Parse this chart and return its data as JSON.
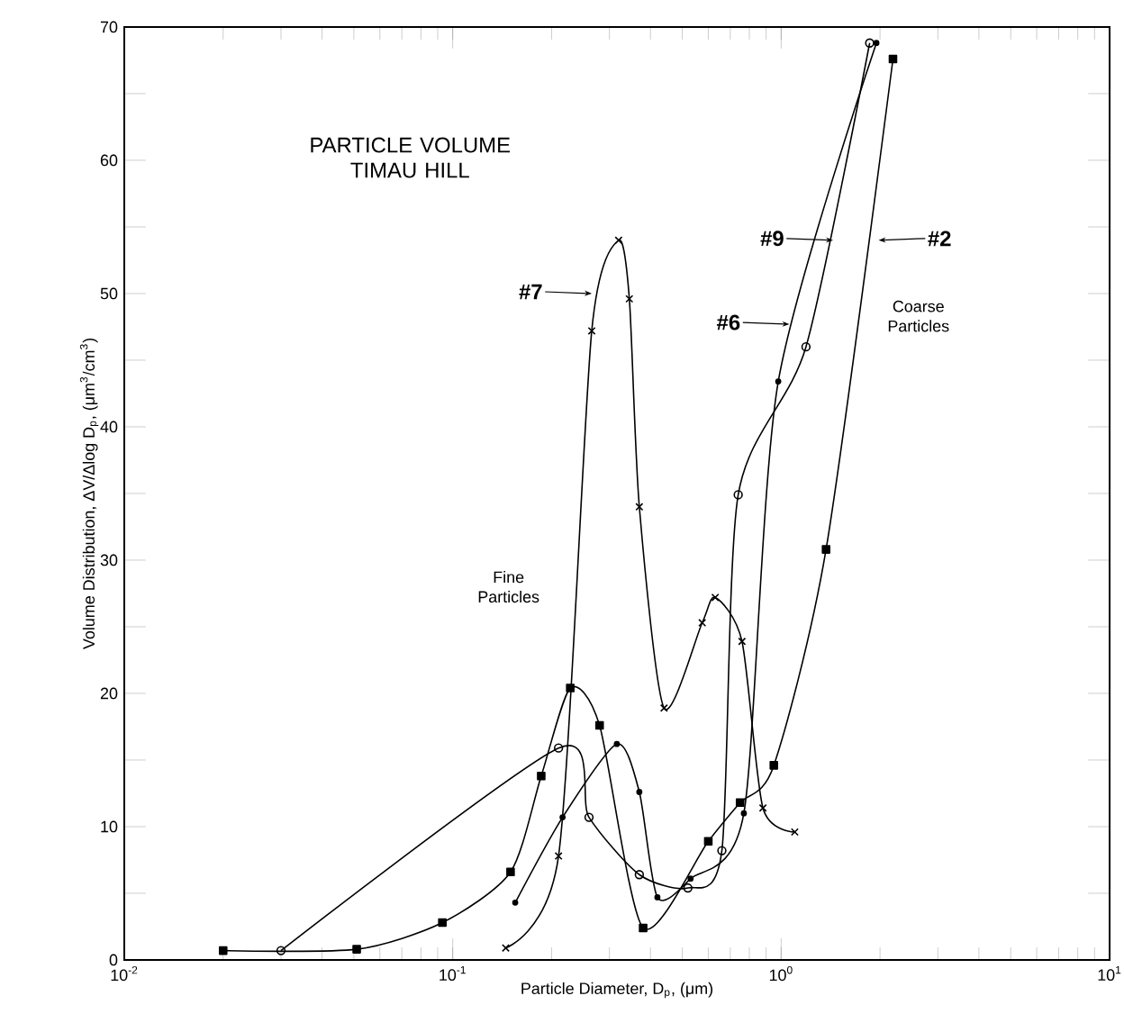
{
  "chart_data": {
    "type": "line",
    "title": "PARTICLE VOLUME TIMAU HILL",
    "xlabel": "Particle Diameter, D$_{p}$, (μm)",
    "ylabel": "Volume Distribution, ΔV/Δlog D$_{p}$, (μm$^{3}$/cm$^{3}$)",
    "log": "x",
    "xlim": [
      0.01,
      10
    ],
    "ylim": [
      0,
      70
    ],
    "xticks": [
      {
        "value": 0.01,
        "label": "10$^{-2}$"
      },
      {
        "value": 0.1,
        "label": "10$^{-1}$"
      },
      {
        "value": 1,
        "label": "10$^{0}$"
      },
      {
        "value": 10,
        "label": "10$^{1}$"
      }
    ],
    "yticks": [
      0,
      {
        "value": 5,
        "label": null
      },
      10,
      {
        "value": 15,
        "label": null
      },
      20,
      {
        "value": 25,
        "label": null
      },
      30,
      {
        "value": 35,
        "label": null
      },
      40,
      {
        "value": 45,
        "label": null
      },
      50,
      {
        "value": 55,
        "label": null
      },
      60,
      {
        "value": 65,
        "label": null
      },
      70
    ],
    "tick_labels": "xy",
    "series": [
      {
        "color": "#000000",
        "marker": "square",
        "x": [
          0.02,
          0.051,
          0.093,
          0.15,
          0.186,
          0.228,
          0.28,
          0.38,
          0.6,
          0.75,
          0.95,
          1.37,
          2.19
        ],
        "values": [
          0.7,
          0.8,
          2.8,
          6.6,
          13.8,
          20.4,
          17.6,
          2.4,
          8.9,
          11.8,
          14.6,
          30.8,
          67.6
        ]
      },
      {
        "color": "#000000",
        "marker": "circle",
        "x": [
          0.155,
          0.216,
          0.316,
          0.37,
          0.42,
          0.53,
          0.77,
          0.98,
          1.95
        ],
        "values": [
          4.3,
          10.7,
          16.2,
          12.6,
          4.7,
          6.1,
          11,
          43.4,
          68.8
        ]
      },
      {
        "color": "#000000",
        "marker": "cross",
        "x": [
          0.145,
          0.21,
          0.265,
          0.32,
          0.345,
          0.37,
          0.44,
          0.575,
          0.63,
          0.76,
          0.88,
          1.1
        ],
        "values": [
          0.9,
          7.8,
          47.2,
          54,
          49.6,
          34,
          18.9,
          25.3,
          27.2,
          23.9,
          11.4,
          9.6
        ]
      },
      {
        "color": "#000000",
        "marker": "open circle",
        "x": [
          0.03,
          0.21,
          0.26,
          0.37,
          0.52,
          0.66,
          0.74,
          1.19,
          1.86
        ],
        "values": [
          0.7,
          15.9,
          10.7,
          6.4,
          5.4,
          8.2,
          34.9,
          46,
          68.8
        ]
      }
    ],
    "annotations": [
      {
        "text": "#7",
        "x": 0.265,
        "y": 50
      },
      {
        "text": "#9",
        "x": 1.44,
        "y": 54
      },
      {
        "text": "#6",
        "x": 1.06,
        "y": 47.7
      },
      {
        "text": "#2",
        "x": 1.98,
        "y": 54
      },
      "Fine Particles",
      "Coarse Particles"
    ]
  }
}
